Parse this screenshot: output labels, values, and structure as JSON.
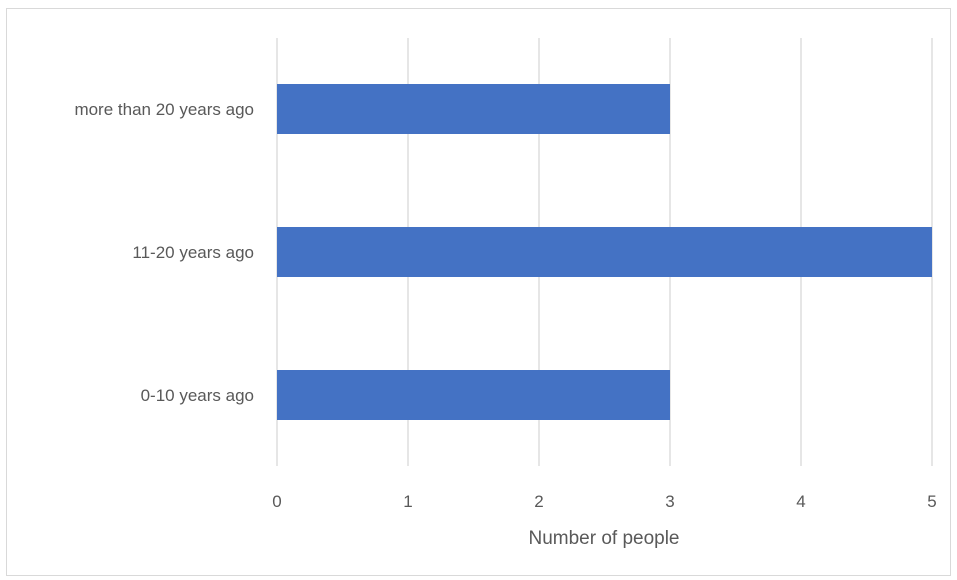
{
  "chart_data": {
    "type": "bar",
    "orientation": "horizontal",
    "categories": [
      "more than 20 years ago",
      "11-20 years ago",
      "0-10 years ago"
    ],
    "values": [
      3,
      5,
      3
    ],
    "x_ticks": [
      "0",
      "1",
      "2",
      "3",
      "4",
      "5"
    ],
    "xlim": [
      0,
      5
    ],
    "xlabel": "Number of people",
    "ylabel": "",
    "title": "",
    "grid": "vertical",
    "legend": "none",
    "bar_color": "#4472c4",
    "grid_color": "#d9d9d9"
  }
}
